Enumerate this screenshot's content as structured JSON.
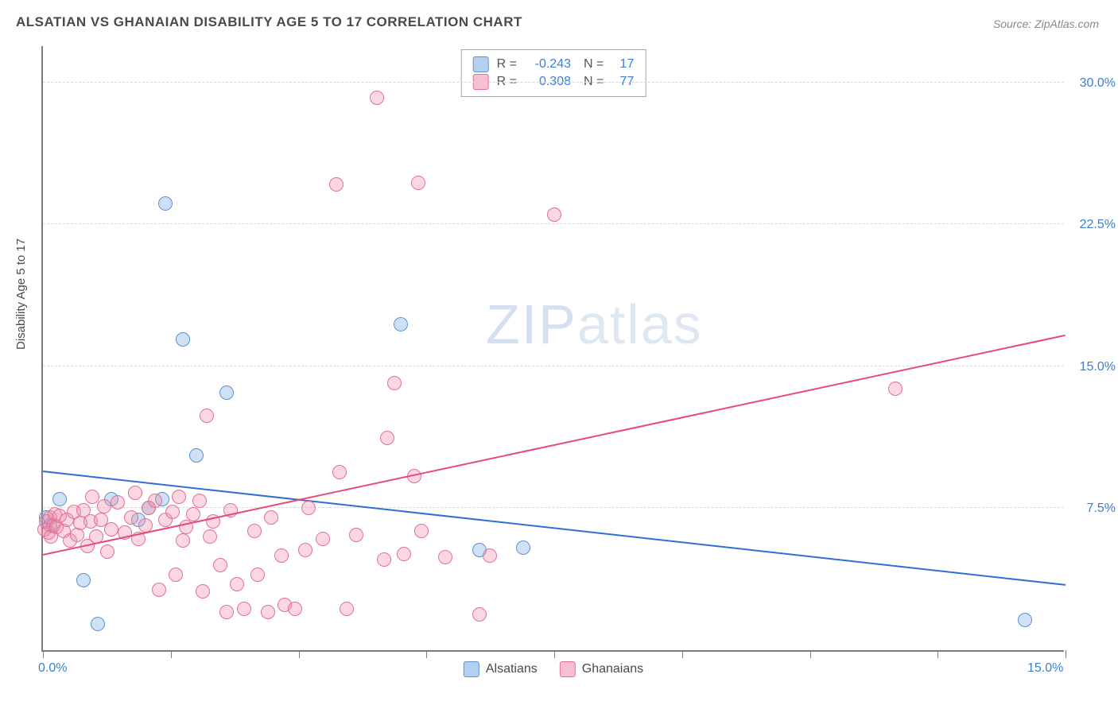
{
  "title": "ALSATIAN VS GHANAIAN DISABILITY AGE 5 TO 17 CORRELATION CHART",
  "source": "Source: ZipAtlas.com",
  "ylabel": "Disability Age 5 to 17",
  "watermark_a": "ZIP",
  "watermark_b": "atlas",
  "chart": {
    "type": "scatter",
    "xlim": [
      0,
      15
    ],
    "ylim": [
      0,
      32
    ],
    "x_tick_positions": [
      0,
      1.875,
      3.75,
      5.625,
      7.5,
      9.375,
      11.25,
      13.125,
      15
    ],
    "x_tick_labels_shown": {
      "0": "0.0%",
      "15": "15.0%"
    },
    "y_gridlines": [
      7.5,
      15.0,
      22.5,
      30.0
    ],
    "y_tick_labels": [
      "7.5%",
      "15.0%",
      "22.5%",
      "30.0%"
    ],
    "background_color": "#ffffff",
    "grid_color": "#d8d8d8",
    "axis_color": "#7a7a7a",
    "tick_label_color": "#3a7fd5",
    "series": [
      {
        "name": "Alsatians",
        "fill": "rgba(120,170,225,0.35)",
        "stroke": "#5b93cf",
        "marker_radius": 9,
        "trend": {
          "x1": 0,
          "y1": 9.4,
          "x2": 15,
          "y2": 3.4,
          "color": "#2f6fcf",
          "width": 2
        },
        "R": "-0.243",
        "N": "17",
        "points": [
          [
            0.05,
            7.0
          ],
          [
            0.1,
            6.6
          ],
          [
            0.25,
            8.0
          ],
          [
            0.6,
            3.7
          ],
          [
            0.8,
            1.4
          ],
          [
            1.0,
            8.0
          ],
          [
            1.4,
            6.9
          ],
          [
            1.55,
            7.5
          ],
          [
            1.75,
            8.0
          ],
          [
            1.8,
            23.6
          ],
          [
            2.05,
            16.4
          ],
          [
            2.25,
            10.3
          ],
          [
            2.7,
            13.6
          ],
          [
            5.25,
            17.2
          ],
          [
            6.4,
            5.3
          ],
          [
            7.05,
            5.4
          ],
          [
            14.4,
            1.6
          ]
        ]
      },
      {
        "name": "Ghanaians",
        "fill": "rgba(240,140,170,0.35)",
        "stroke": "#e27095",
        "marker_radius": 9,
        "trend": {
          "x1": 0,
          "y1": 5.0,
          "x2": 15,
          "y2": 16.6,
          "color": "#e84a7a",
          "width": 2
        },
        "R": "0.308",
        "N": "77",
        "points": [
          [
            0.02,
            6.4
          ],
          [
            0.05,
            6.8
          ],
          [
            0.08,
            6.2
          ],
          [
            0.1,
            7.0
          ],
          [
            0.12,
            6.0
          ],
          [
            0.15,
            6.6
          ],
          [
            0.18,
            7.2
          ],
          [
            0.2,
            6.5
          ],
          [
            0.25,
            7.1
          ],
          [
            0.3,
            6.3
          ],
          [
            0.35,
            6.9
          ],
          [
            0.4,
            5.8
          ],
          [
            0.45,
            7.3
          ],
          [
            0.5,
            6.1
          ],
          [
            0.55,
            6.7
          ],
          [
            0.6,
            7.4
          ],
          [
            0.65,
            5.5
          ],
          [
            0.7,
            6.8
          ],
          [
            0.72,
            8.1
          ],
          [
            0.78,
            6.0
          ],
          [
            0.85,
            6.9
          ],
          [
            0.9,
            7.6
          ],
          [
            0.95,
            5.2
          ],
          [
            1.0,
            6.4
          ],
          [
            1.1,
            7.8
          ],
          [
            1.2,
            6.2
          ],
          [
            1.3,
            7.0
          ],
          [
            1.35,
            8.3
          ],
          [
            1.4,
            5.9
          ],
          [
            1.5,
            6.6
          ],
          [
            1.55,
            7.5
          ],
          [
            1.65,
            7.9
          ],
          [
            1.7,
            3.2
          ],
          [
            1.8,
            6.9
          ],
          [
            1.9,
            7.3
          ],
          [
            1.95,
            4.0
          ],
          [
            2.0,
            8.1
          ],
          [
            2.05,
            5.8
          ],
          [
            2.1,
            6.5
          ],
          [
            2.2,
            7.2
          ],
          [
            2.3,
            7.9
          ],
          [
            2.35,
            3.1
          ],
          [
            2.4,
            12.4
          ],
          [
            2.45,
            6.0
          ],
          [
            2.5,
            6.8
          ],
          [
            2.6,
            4.5
          ],
          [
            2.7,
            2.0
          ],
          [
            2.75,
            7.4
          ],
          [
            2.85,
            3.5
          ],
          [
            2.95,
            2.2
          ],
          [
            3.1,
            6.3
          ],
          [
            3.15,
            4.0
          ],
          [
            3.3,
            2.0
          ],
          [
            3.35,
            7.0
          ],
          [
            3.5,
            5.0
          ],
          [
            3.55,
            2.4
          ],
          [
            3.7,
            2.2
          ],
          [
            3.85,
            5.3
          ],
          [
            3.9,
            7.5
          ],
          [
            4.1,
            5.9
          ],
          [
            4.3,
            24.6
          ],
          [
            4.35,
            9.4
          ],
          [
            4.45,
            2.2
          ],
          [
            4.6,
            6.1
          ],
          [
            4.9,
            29.2
          ],
          [
            5.0,
            4.8
          ],
          [
            5.05,
            11.2
          ],
          [
            5.15,
            14.1
          ],
          [
            5.3,
            5.1
          ],
          [
            5.45,
            9.2
          ],
          [
            5.5,
            24.7
          ],
          [
            5.55,
            6.3
          ],
          [
            5.9,
            4.9
          ],
          [
            6.4,
            1.9
          ],
          [
            6.55,
            5.0
          ],
          [
            7.5,
            23.0
          ],
          [
            12.5,
            13.8
          ]
        ]
      }
    ]
  },
  "legend_top": {
    "rows": [
      {
        "swatch_fill": "rgba(120,170,225,0.55)",
        "swatch_stroke": "#5b93cf",
        "r_label": "R =",
        "r_value": "-0.243",
        "n_label": "N =",
        "n_value": "17"
      },
      {
        "swatch_fill": "rgba(240,140,170,0.55)",
        "swatch_stroke": "#e27095",
        "r_label": "R =",
        "r_value": "0.308",
        "n_label": "N =",
        "n_value": "77"
      }
    ]
  },
  "legend_bottom": {
    "items": [
      {
        "swatch_fill": "rgba(120,170,225,0.55)",
        "swatch_stroke": "#5b93cf",
        "label": "Alsatians"
      },
      {
        "swatch_fill": "rgba(240,140,170,0.55)",
        "swatch_stroke": "#e27095",
        "label": "Ghanaians"
      }
    ]
  }
}
